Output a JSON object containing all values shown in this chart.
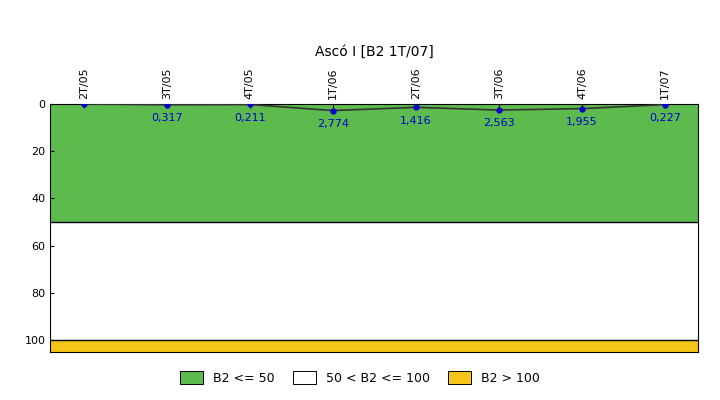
{
  "title": "Ascó I [B2 1T/07]",
  "x_labels": [
    "2T/05",
    "3T/05",
    "4T/05",
    "1T/06",
    "2T/06",
    "3T/06",
    "4T/06",
    "1T/07"
  ],
  "x_values": [
    0,
    1,
    2,
    3,
    4,
    5,
    6,
    7
  ],
  "y_values": [
    0,
    0.317,
    0.211,
    2.774,
    1.416,
    2.563,
    1.955,
    0.227
  ],
  "data_labels": [
    "",
    "0,317",
    "0,211",
    "2,774",
    "1,416",
    "2,563",
    "1,955",
    "0,227"
  ],
  "ylim": [
    0,
    105
  ],
  "yticks": [
    0,
    20,
    40,
    60,
    80,
    100
  ],
  "zone_green_max": 50,
  "zone_white_max": 100,
  "zone_gold_max": 105,
  "green_color": "#5DBB4D",
  "white_color": "#FFFFFF",
  "gold_color": "#F5C518",
  "line_color": "#333333",
  "point_color": "#0000CC",
  "label_color": "#0000CC",
  "legend_green_label": "B2 <= 50",
  "legend_white_label": "50 < B2 <= 100",
  "legend_gold_label": "B2 > 100",
  "background_color": "#FFFFFF",
  "title_fontsize": 10,
  "label_fontsize": 8
}
